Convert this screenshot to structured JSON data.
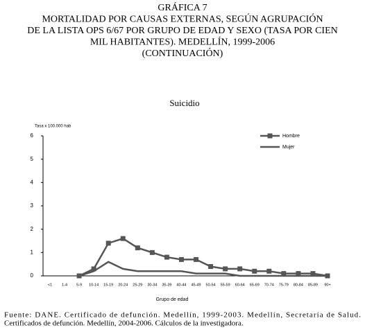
{
  "header": {
    "lines": [
      "GRÁFICA 7",
      "MORTALIDAD POR CAUSAS EXTERNAS, SEGÚN AGRUPACIÓN",
      "DE LA LISTA OPS 6/67 POR GRUPO DE EDAD Y SEXO (TASA POR CIEN",
      "MIL HABITANTES). MEDELLÍN, 1999-2006",
      "(CONTINUACIÓN)"
    ]
  },
  "chart_data": {
    "type": "line",
    "title": "Suicidio",
    "y_label": "Tasa x 100.000 hab",
    "x_label": "Grupo de edad",
    "categories": [
      "<1",
      "1-4",
      "5-9",
      "10-14",
      "15-19",
      "20-24",
      "25-29",
      "30-34",
      "35-39",
      "40-44",
      "45-49",
      "50-54",
      "55-59",
      "60-64",
      "65-69",
      "70-74",
      "75-79",
      "80-84",
      "85-89",
      "90+"
    ],
    "series": [
      {
        "name": "Hombre",
        "color": "#555555",
        "marker": "square",
        "values": [
          null,
          null,
          0,
          0.3,
          1.4,
          1.6,
          1.2,
          1.0,
          0.8,
          0.7,
          0.7,
          0.4,
          0.3,
          0.3,
          0.2,
          0.2,
          0.1,
          0.1,
          0.1,
          0
        ]
      },
      {
        "name": "Mujer",
        "color": "#555555",
        "marker": "none",
        "values": [
          null,
          null,
          0,
          0.2,
          0.6,
          0.3,
          0.2,
          0.2,
          0.2,
          0.2,
          0.1,
          0.1,
          0.1,
          0,
          0,
          0,
          0,
          0,
          0,
          0
        ]
      }
    ],
    "ylim": [
      0,
      6
    ],
    "yticks": [
      0,
      1,
      2,
      3,
      4,
      5,
      6
    ],
    "grid": false,
    "legend": "top-right"
  },
  "source": {
    "lines": [
      "Fuente: DANE. Certificado de defunción. Medellín, 1999-2003. Medellín, Secretaría de Salud.",
      "Certificados de defunción. Medellín, 2004-2006. Cálculos de la investigadora."
    ]
  }
}
